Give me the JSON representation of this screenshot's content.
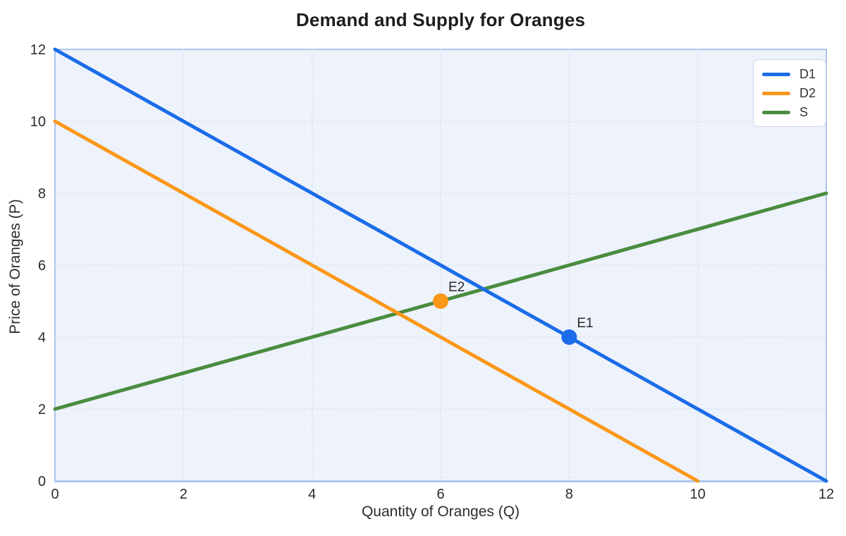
{
  "title": "Demand and Supply for Oranges",
  "axes": {
    "x_label": "Quantity of Oranges (Q)",
    "y_label": "Price of Oranges (P)",
    "x_ticks": [
      0,
      2,
      4,
      6,
      8,
      10,
      12
    ],
    "y_ticks": [
      0,
      2,
      4,
      6,
      8,
      10,
      12
    ]
  },
  "legend": {
    "items": [
      {
        "label": "D1",
        "color": "#1a6ce8"
      },
      {
        "label": "D2",
        "color": "#fb9718"
      },
      {
        "label": "S",
        "color": "#4a8c3f"
      }
    ]
  },
  "chart_data": {
    "type": "line",
    "title": "Demand and Supply for Oranges",
    "xlabel": "Quantity of Oranges (Q)",
    "ylabel": "Price of Oranges (P)",
    "xlim": [
      0,
      12
    ],
    "ylim": [
      0,
      12
    ],
    "x_ticks": [
      0,
      2,
      4,
      6,
      8,
      10,
      12
    ],
    "y_ticks": [
      0,
      2,
      4,
      6,
      8,
      10,
      12
    ],
    "grid": true,
    "legend_position": "top-right",
    "series": [
      {
        "name": "S",
        "color": "#4a8c3f",
        "points": [
          [
            0,
            2
          ],
          [
            12,
            8
          ]
        ]
      },
      {
        "name": "D2",
        "color": "#fb9718",
        "points": [
          [
            0,
            10
          ],
          [
            10,
            0
          ]
        ]
      },
      {
        "name": "D1",
        "color": "#1a6ce8",
        "points": [
          [
            0,
            12
          ],
          [
            12,
            0
          ]
        ]
      }
    ],
    "markers": [
      {
        "label": "E2",
        "x": 6,
        "y": 5,
        "color": "#fb9718"
      },
      {
        "label": "E1",
        "x": 8,
        "y": 4,
        "color": "#1a6ce8"
      }
    ],
    "colors": {
      "plot_bg": "#edf2fb",
      "plot_border": "#adc6f0",
      "grid": "#d8e2f4",
      "tick_text": "#2c2c2e",
      "marker_label": "#2a2a2a"
    }
  }
}
